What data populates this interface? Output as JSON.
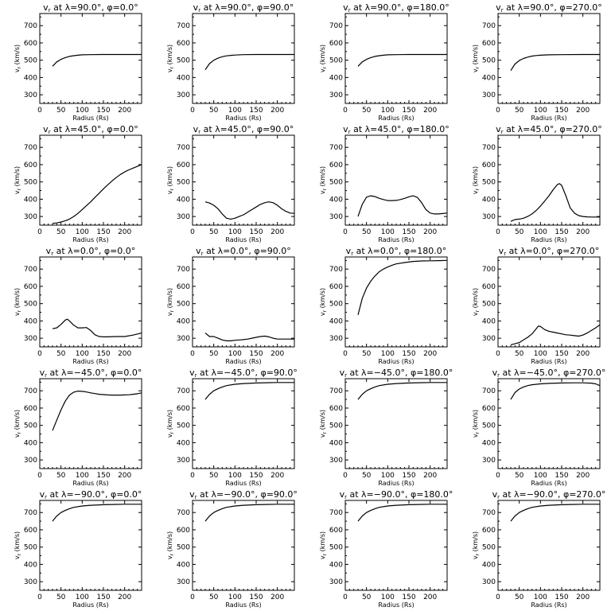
{
  "chart_data": [
    {
      "type": "line",
      "title": "v_r at λ=90.0°, φ=0.0°",
      "title_parts": {
        "lat": "90.0",
        "lon": "0.0"
      },
      "xlabel": "Radius (Rs)",
      "ylabel": "v_r (km/s)",
      "xlim": [
        0,
        240
      ],
      "ylim": [
        250,
        770
      ],
      "xticks": [
        0,
        50,
        100,
        150,
        200
      ],
      "yticks": [
        300,
        400,
        500,
        600,
        700
      ],
      "x": [
        30,
        40,
        50,
        60,
        70,
        80,
        90,
        100,
        120,
        150,
        200,
        240
      ],
      "values": [
        465,
        490,
        505,
        515,
        522,
        526,
        529,
        531,
        532,
        533,
        533,
        533
      ]
    },
    {
      "type": "line",
      "title": "v_r at λ=90.0°, φ=90.0°",
      "title_parts": {
        "lat": "90.0",
        "lon": "90.0"
      },
      "xlabel": "Radius (Rs)",
      "ylabel": "v_r (km/s)",
      "xlim": [
        0,
        240
      ],
      "ylim": [
        250,
        770
      ],
      "xticks": [
        0,
        50,
        100,
        150,
        200
      ],
      "yticks": [
        300,
        400,
        500,
        600,
        700
      ],
      "x": [
        30,
        40,
        50,
        60,
        70,
        80,
        90,
        100,
        120,
        150,
        200,
        240
      ],
      "values": [
        445,
        480,
        500,
        512,
        520,
        525,
        528,
        530,
        532,
        533,
        533,
        533
      ]
    },
    {
      "type": "line",
      "title": "v_r at λ=90.0°, φ=180.0°",
      "title_parts": {
        "lat": "90.0",
        "lon": "180.0"
      },
      "xlabel": "Radius (Rs)",
      "ylabel": "v_r (km/s)",
      "xlim": [
        0,
        240
      ],
      "ylim": [
        250,
        770
      ],
      "xticks": [
        0,
        50,
        100,
        150,
        200
      ],
      "yticks": [
        300,
        400,
        500,
        600,
        700
      ],
      "x": [
        30,
        40,
        50,
        60,
        70,
        80,
        90,
        100,
        120,
        150,
        200,
        240
      ],
      "values": [
        465,
        490,
        505,
        515,
        522,
        526,
        529,
        531,
        532,
        533,
        533,
        533
      ]
    },
    {
      "type": "line",
      "title": "v_r at λ=90.0°, φ=270.0°",
      "title_parts": {
        "lat": "90.0",
        "lon": "270.0"
      },
      "xlabel": "Radius (Rs)",
      "ylabel": "v_r (km/s)",
      "xlim": [
        0,
        240
      ],
      "ylim": [
        250,
        770
      ],
      "xticks": [
        0,
        50,
        100,
        150,
        200
      ],
      "yticks": [
        300,
        400,
        500,
        600,
        700
      ],
      "x": [
        30,
        40,
        50,
        60,
        70,
        80,
        90,
        100,
        120,
        150,
        200,
        240
      ],
      "values": [
        440,
        478,
        498,
        510,
        518,
        524,
        527,
        529,
        531,
        532,
        533,
        533
      ]
    },
    {
      "type": "line",
      "title": "v_r at λ=45.0°, φ=0.0°",
      "title_parts": {
        "lat": "45.0",
        "lon": "0.0"
      },
      "xlabel": "Radius (Rs)",
      "ylabel": "v_r (km/s)",
      "xlim": [
        0,
        240
      ],
      "ylim": [
        250,
        770
      ],
      "xticks": [
        0,
        50,
        100,
        150,
        200
      ],
      "yticks": [
        300,
        400,
        500,
        600,
        700
      ],
      "x": [
        30,
        40,
        50,
        60,
        70,
        80,
        90,
        100,
        110,
        120,
        130,
        140,
        150,
        160,
        170,
        180,
        190,
        200,
        210,
        220,
        230,
        240
      ],
      "values": [
        260,
        263,
        268,
        275,
        285,
        300,
        318,
        340,
        363,
        385,
        410,
        435,
        460,
        483,
        505,
        525,
        543,
        558,
        570,
        580,
        590,
        600
      ]
    },
    {
      "type": "line",
      "title": "v_r at λ=45.0°, φ=90.0°",
      "title_parts": {
        "lat": "45.0",
        "lon": "90.0"
      },
      "xlabel": "Radius (Rs)",
      "ylabel": "v_r (km/s)",
      "xlim": [
        0,
        240
      ],
      "ylim": [
        250,
        770
      ],
      "xticks": [
        0,
        50,
        100,
        150,
        200
      ],
      "yticks": [
        300,
        400,
        500,
        600,
        700
      ],
      "x": [
        30,
        40,
        50,
        60,
        70,
        80,
        90,
        100,
        110,
        120,
        130,
        140,
        150,
        160,
        170,
        180,
        190,
        200,
        210,
        220,
        230,
        240
      ],
      "values": [
        385,
        378,
        365,
        345,
        315,
        290,
        285,
        290,
        300,
        310,
        325,
        340,
        355,
        370,
        380,
        385,
        380,
        365,
        345,
        330,
        320,
        318
      ]
    },
    {
      "type": "line",
      "title": "v_r at λ=45.0°, φ=180.0°",
      "title_parts": {
        "lat": "45.0",
        "lon": "180.0"
      },
      "xlabel": "Radius (Rs)",
      "ylabel": "v_r (km/s)",
      "xlim": [
        0,
        240
      ],
      "ylim": [
        250,
        770
      ],
      "xticks": [
        0,
        50,
        100,
        150,
        200
      ],
      "yticks": [
        300,
        400,
        500,
        600,
        700
      ],
      "x": [
        30,
        40,
        50,
        60,
        70,
        80,
        90,
        100,
        110,
        120,
        130,
        140,
        150,
        160,
        170,
        180,
        190,
        200,
        210,
        220,
        230,
        240
      ],
      "values": [
        300,
        370,
        412,
        420,
        415,
        405,
        398,
        392,
        392,
        393,
        398,
        405,
        414,
        420,
        410,
        380,
        340,
        320,
        315,
        315,
        317,
        320
      ]
    },
    {
      "type": "line",
      "title": "v_r at λ=45.0°, φ=270.0°",
      "title_parts": {
        "lat": "45.0",
        "lon": "270.0"
      },
      "xlabel": "Radius (Rs)",
      "ylabel": "v_r (km/s)",
      "xlim": [
        0,
        240
      ],
      "ylim": [
        250,
        770
      ],
      "xticks": [
        0,
        50,
        100,
        150,
        200
      ],
      "yticks": [
        300,
        400,
        500,
        600,
        700
      ],
      "x": [
        30,
        40,
        50,
        60,
        70,
        80,
        90,
        100,
        110,
        120,
        130,
        140,
        145,
        150,
        160,
        170,
        180,
        190,
        200,
        210,
        220,
        240
      ],
      "values": [
        272,
        282,
        285,
        290,
        300,
        315,
        335,
        360,
        390,
        420,
        455,
        485,
        490,
        480,
        420,
        350,
        320,
        305,
        300,
        298,
        297,
        297
      ]
    },
    {
      "type": "line",
      "title": "v_r at λ=0.0°, φ=0.0°",
      "title_parts": {
        "lat": "0.0",
        "lon": "0.0"
      },
      "xlabel": "Radius (Rs)",
      "ylabel": "v_r (km/s)",
      "xlim": [
        0,
        240
      ],
      "ylim": [
        250,
        770
      ],
      "xticks": [
        0,
        50,
        100,
        150,
        200
      ],
      "yticks": [
        300,
        400,
        500,
        600,
        700
      ],
      "x": [
        30,
        40,
        50,
        60,
        65,
        70,
        80,
        90,
        100,
        110,
        120,
        130,
        140,
        150,
        160,
        180,
        200,
        220,
        240
      ],
      "values": [
        355,
        360,
        380,
        405,
        410,
        400,
        375,
        360,
        360,
        362,
        345,
        320,
        310,
        308,
        308,
        310,
        310,
        318,
        330
      ]
    },
    {
      "type": "line",
      "title": "v_r at λ=0.0°, φ=90.0°",
      "title_parts": {
        "lat": "0.0",
        "lon": "90.0"
      },
      "xlabel": "Radius (Rs)",
      "ylabel": "v_r (km/s)",
      "xlim": [
        0,
        240
      ],
      "ylim": [
        250,
        770
      ],
      "xticks": [
        0,
        50,
        100,
        150,
        200
      ],
      "yticks": [
        300,
        400,
        500,
        600,
        700
      ],
      "x": [
        30,
        40,
        50,
        60,
        70,
        80,
        90,
        100,
        110,
        120,
        130,
        140,
        150,
        160,
        170,
        180,
        190,
        200,
        210,
        220,
        240
      ],
      "values": [
        330,
        310,
        310,
        300,
        290,
        285,
        285,
        288,
        290,
        292,
        295,
        300,
        305,
        310,
        312,
        308,
        300,
        295,
        295,
        295,
        295
      ]
    },
    {
      "type": "line",
      "title": "v_r at λ=0.0°, φ=180.0°",
      "title_parts": {
        "lat": "0.0",
        "lon": "180.0"
      },
      "xlabel": "Radius (Rs)",
      "ylabel": "v_r (km/s)",
      "xlim": [
        0,
        240
      ],
      "ylim": [
        250,
        770
      ],
      "xticks": [
        0,
        50,
        100,
        150,
        200
      ],
      "yticks": [
        300,
        400,
        500,
        600,
        700
      ],
      "x": [
        30,
        40,
        50,
        60,
        70,
        80,
        90,
        100,
        110,
        120,
        140,
        160,
        180,
        200,
        220,
        240
      ],
      "values": [
        435,
        530,
        590,
        630,
        660,
        685,
        700,
        712,
        722,
        730,
        738,
        744,
        747,
        748,
        749,
        750
      ]
    },
    {
      "type": "line",
      "title": "v_r at λ=0.0°, φ=270.0°",
      "title_parts": {
        "lat": "0.0",
        "lon": "270.0"
      },
      "xlabel": "Radius (Rs)",
      "ylabel": "v_r (km/s)",
      "xlim": [
        0,
        240
      ],
      "ylim": [
        250,
        770
      ],
      "xticks": [
        0,
        50,
        100,
        150,
        200
      ],
      "yticks": [
        300,
        400,
        500,
        600,
        700
      ],
      "x": [
        30,
        40,
        50,
        60,
        70,
        80,
        90,
        95,
        100,
        110,
        120,
        130,
        140,
        150,
        160,
        170,
        180,
        190,
        200,
        210,
        220,
        230,
        240
      ],
      "values": [
        262,
        268,
        275,
        290,
        305,
        325,
        355,
        370,
        368,
        350,
        340,
        335,
        330,
        325,
        320,
        318,
        315,
        312,
        318,
        330,
        345,
        360,
        378
      ]
    },
    {
      "type": "line",
      "title": "v_r at λ=−45.0°, φ=0.0°",
      "title_parts": {
        "lat": "−45.0",
        "lon": "0.0"
      },
      "xlabel": "Radius (Rs)",
      "ylabel": "v_r (km/s)",
      "xlim": [
        0,
        240
      ],
      "ylim": [
        250,
        770
      ],
      "xticks": [
        0,
        50,
        100,
        150,
        200
      ],
      "yticks": [
        300,
        400,
        500,
        600,
        700
      ],
      "x": [
        30,
        40,
        50,
        60,
        70,
        80,
        90,
        100,
        110,
        120,
        130,
        140,
        150,
        160,
        170,
        180,
        190,
        200,
        210,
        220,
        230,
        240
      ],
      "values": [
        470,
        530,
        590,
        640,
        675,
        692,
        698,
        697,
        693,
        688,
        684,
        680,
        678,
        676,
        675,
        675,
        675,
        676,
        677,
        680,
        683,
        688
      ]
    },
    {
      "type": "line",
      "title": "v_r at λ=−45.0°, φ=90.0°",
      "title_parts": {
        "lat": "−45.0",
        "lon": "90.0"
      },
      "xlabel": "Radius (Rs)",
      "ylabel": "v_r (km/s)",
      "xlim": [
        0,
        240
      ],
      "ylim": [
        250,
        770
      ],
      "xticks": [
        0,
        50,
        100,
        150,
        200
      ],
      "yticks": [
        300,
        400,
        500,
        600,
        700
      ],
      "x": [
        30,
        40,
        50,
        60,
        70,
        80,
        100,
        120,
        150,
        180,
        200,
        240
      ],
      "values": [
        650,
        680,
        700,
        712,
        722,
        730,
        738,
        742,
        745,
        747,
        748,
        748
      ]
    },
    {
      "type": "line",
      "title": "v_r at λ=−45.0°, φ=180.0°",
      "title_parts": {
        "lat": "−45.0",
        "lon": "180.0"
      },
      "xlabel": "Radius (Rs)",
      "ylabel": "v_r (km/s)",
      "xlim": [
        0,
        240
      ],
      "ylim": [
        250,
        770
      ],
      "xticks": [
        0,
        50,
        100,
        150,
        200
      ],
      "yticks": [
        300,
        400,
        500,
        600,
        700
      ],
      "x": [
        30,
        40,
        50,
        60,
        70,
        80,
        100,
        120,
        150,
        180,
        200,
        240
      ],
      "values": [
        650,
        680,
        700,
        712,
        722,
        730,
        738,
        742,
        745,
        747,
        748,
        748
      ]
    },
    {
      "type": "line",
      "title": "v_r at λ=−45.0°, φ=270.0°",
      "title_parts": {
        "lat": "−45.0",
        "lon": "270.0"
      },
      "xlabel": "Radius (Rs)",
      "ylabel": "v_r (km/s)",
      "xlim": [
        0,
        240
      ],
      "ylim": [
        250,
        770
      ],
      "xticks": [
        0,
        50,
        100,
        150,
        200
      ],
      "yticks": [
        300,
        400,
        500,
        600,
        700
      ],
      "x": [
        30,
        40,
        50,
        60,
        70,
        80,
        100,
        120,
        150,
        180,
        200,
        220,
        230,
        240
      ],
      "values": [
        650,
        690,
        710,
        722,
        730,
        735,
        740,
        743,
        745,
        746,
        746,
        744,
        740,
        730
      ]
    },
    {
      "type": "line",
      "title": "v_r at λ=−90.0°, φ=0.0°",
      "title_parts": {
        "lat": "−90.0",
        "lon": "0.0"
      },
      "xlabel": "Radius (Rs)",
      "ylabel": "v_r (km/s)",
      "xlim": [
        0,
        240
      ],
      "ylim": [
        250,
        770
      ],
      "xticks": [
        0,
        50,
        100,
        150,
        200
      ],
      "yticks": [
        300,
        400,
        500,
        600,
        700
      ],
      "x": [
        30,
        40,
        50,
        60,
        70,
        80,
        100,
        120,
        150,
        180,
        200,
        240
      ],
      "values": [
        650,
        680,
        700,
        712,
        722,
        730,
        738,
        742,
        745,
        747,
        748,
        748
      ]
    },
    {
      "type": "line",
      "title": "v_r at λ=−90.0°, φ=90.0°",
      "title_parts": {
        "lat": "−90.0",
        "lon": "90.0"
      },
      "xlabel": "Radius (Rs)",
      "ylabel": "v_r (km/s)",
      "xlim": [
        0,
        240
      ],
      "ylim": [
        250,
        770
      ],
      "xticks": [
        0,
        50,
        100,
        150,
        200
      ],
      "yticks": [
        300,
        400,
        500,
        600,
        700
      ],
      "x": [
        30,
        40,
        50,
        60,
        70,
        80,
        100,
        120,
        150,
        180,
        200,
        240
      ],
      "values": [
        650,
        680,
        700,
        712,
        722,
        730,
        738,
        742,
        745,
        747,
        748,
        748
      ]
    },
    {
      "type": "line",
      "title": "v_r at λ=−90.0°, φ=180.0°",
      "title_parts": {
        "lat": "−90.0",
        "lon": "180.0"
      },
      "xlabel": "Radius (Rs)",
      "ylabel": "v_r (km/s)",
      "xlim": [
        0,
        240
      ],
      "ylim": [
        250,
        770
      ],
      "xticks": [
        0,
        50,
        100,
        150,
        200
      ],
      "yticks": [
        300,
        400,
        500,
        600,
        700
      ],
      "x": [
        30,
        40,
        50,
        60,
        70,
        80,
        100,
        120,
        150,
        180,
        200,
        240
      ],
      "values": [
        650,
        680,
        700,
        712,
        722,
        730,
        738,
        742,
        745,
        747,
        748,
        748
      ]
    },
    {
      "type": "line",
      "title": "v_r at λ=−90.0°, φ=270.0°",
      "title_parts": {
        "lat": "−90.0",
        "lon": "270.0"
      },
      "xlabel": "Radius (Rs)",
      "ylabel": "v_r (km/s)",
      "xlim": [
        0,
        240
      ],
      "ylim": [
        250,
        770
      ],
      "xticks": [
        0,
        50,
        100,
        150,
        200
      ],
      "yticks": [
        300,
        400,
        500,
        600,
        700
      ],
      "x": [
        30,
        40,
        50,
        60,
        70,
        80,
        100,
        120,
        150,
        180,
        200,
        240
      ],
      "values": [
        650,
        680,
        700,
        712,
        722,
        730,
        738,
        742,
        745,
        747,
        748,
        748
      ]
    }
  ]
}
